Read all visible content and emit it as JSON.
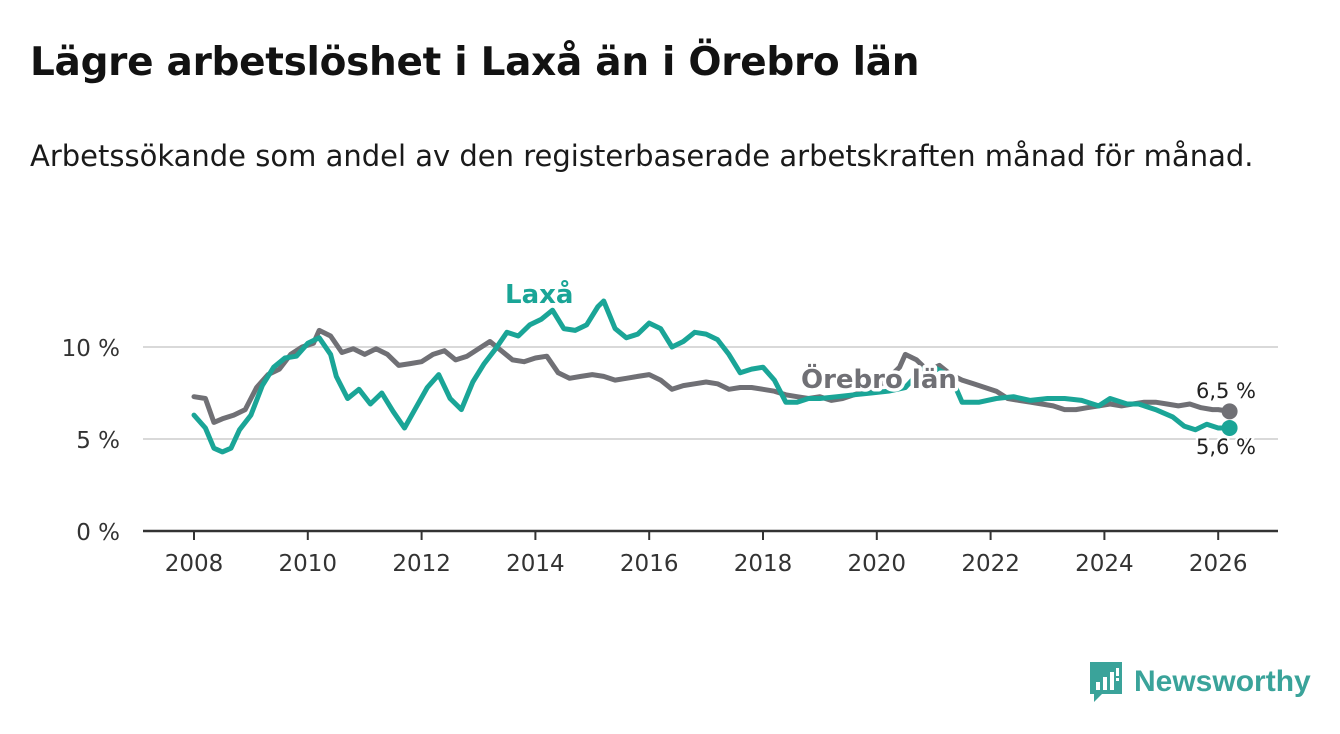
{
  "title": "Lägre arbetslöshet i Laxå än i Örebro län",
  "subtitle": "Arbetssökande som andel av den registerbaserade arbetskraften månad för månad.",
  "brand": "Newsworthy",
  "chart_data": {
    "type": "line",
    "title": "Lägre arbetslöshet i Laxå än i Örebro län",
    "xlabel": "",
    "ylabel": "",
    "xlim": [
      2007.9,
      2027.1
    ],
    "ylim": [
      0,
      10
    ],
    "x_ticks": [
      2008,
      2010,
      2012,
      2014,
      2016,
      2018,
      2020,
      2022,
      2024,
      2026
    ],
    "x_tick_labels": [
      "2008",
      "2010",
      "2012",
      "2014",
      "2016",
      "2018",
      "2020",
      "2022",
      "2024",
      "2026"
    ],
    "y_ticks": [
      0,
      5,
      10
    ],
    "y_tick_labels": [
      "0 %",
      "5 %",
      "10 %"
    ],
    "grid": true,
    "colors": {
      "laxa": "#1aa597",
      "orebro": "#707075",
      "axis": "#333333",
      "grid": "#d9d9d9"
    },
    "series": [
      {
        "name": "Laxå",
        "label": "Laxå",
        "end_label": "5,6 %",
        "points": [
          [
            2008.0,
            6.3
          ],
          [
            2008.2,
            5.6
          ],
          [
            2008.35,
            4.5
          ],
          [
            2008.5,
            4.3
          ],
          [
            2008.65,
            4.5
          ],
          [
            2008.8,
            5.5
          ],
          [
            2009.0,
            6.3
          ],
          [
            2009.2,
            7.9
          ],
          [
            2009.4,
            8.9
          ],
          [
            2009.6,
            9.4
          ],
          [
            2009.8,
            9.5
          ],
          [
            2010.0,
            10.2
          ],
          [
            2010.2,
            10.5
          ],
          [
            2010.4,
            9.6
          ],
          [
            2010.5,
            8.4
          ],
          [
            2010.7,
            7.2
          ],
          [
            2010.9,
            7.7
          ],
          [
            2011.1,
            6.9
          ],
          [
            2011.3,
            7.5
          ],
          [
            2011.5,
            6.5
          ],
          [
            2011.7,
            5.6
          ],
          [
            2011.9,
            6.7
          ],
          [
            2012.1,
            7.8
          ],
          [
            2012.3,
            8.5
          ],
          [
            2012.5,
            7.2
          ],
          [
            2012.7,
            6.6
          ],
          [
            2012.9,
            8.1
          ],
          [
            2013.1,
            9.1
          ],
          [
            2013.3,
            9.9
          ],
          [
            2013.5,
            10.8
          ],
          [
            2013.7,
            10.6
          ],
          [
            2013.9,
            11.2
          ],
          [
            2014.1,
            11.5
          ],
          [
            2014.3,
            12.0
          ],
          [
            2014.5,
            11.0
          ],
          [
            2014.7,
            10.9
          ],
          [
            2014.9,
            11.2
          ],
          [
            2015.1,
            12.2
          ],
          [
            2015.2,
            12.5
          ],
          [
            2015.4,
            11.0
          ],
          [
            2015.6,
            10.5
          ],
          [
            2015.8,
            10.7
          ],
          [
            2016.0,
            11.3
          ],
          [
            2016.2,
            11.0
          ],
          [
            2016.4,
            10.0
          ],
          [
            2016.6,
            10.3
          ],
          [
            2016.8,
            10.8
          ],
          [
            2017.0,
            10.7
          ],
          [
            2017.2,
            10.4
          ],
          [
            2017.4,
            9.6
          ],
          [
            2017.6,
            8.6
          ],
          [
            2017.8,
            8.8
          ],
          [
            2018.0,
            8.9
          ],
          [
            2018.2,
            8.2
          ],
          [
            2018.4,
            7.0
          ],
          [
            2018.6,
            7.0
          ],
          [
            2018.8,
            7.2
          ],
          [
            2019.0,
            7.2
          ],
          [
            2019.3,
            7.3
          ],
          [
            2019.6,
            7.4
          ],
          [
            2019.9,
            7.5
          ],
          [
            2020.2,
            7.6
          ],
          [
            2020.5,
            7.8
          ],
          [
            2020.8,
            8.8
          ],
          [
            2021.0,
            8.9
          ],
          [
            2021.3,
            8.4
          ],
          [
            2021.5,
            7.0
          ],
          [
            2021.8,
            7.0
          ],
          [
            2022.1,
            7.2
          ],
          [
            2022.4,
            7.3
          ],
          [
            2022.7,
            7.1
          ],
          [
            2023.0,
            7.2
          ],
          [
            2023.3,
            7.2
          ],
          [
            2023.6,
            7.1
          ],
          [
            2023.9,
            6.8
          ],
          [
            2024.1,
            7.2
          ],
          [
            2024.4,
            6.9
          ],
          [
            2024.6,
            6.9
          ],
          [
            2024.9,
            6.6
          ],
          [
            2025.2,
            6.2
          ],
          [
            2025.4,
            5.7
          ],
          [
            2025.6,
            5.5
          ],
          [
            2025.8,
            5.8
          ],
          [
            2026.0,
            5.6
          ],
          [
            2026.2,
            5.6
          ]
        ]
      },
      {
        "name": "Örebro län",
        "label": "Örebro län",
        "end_label": "6,5 %",
        "points": [
          [
            2008.0,
            7.3
          ],
          [
            2008.2,
            7.2
          ],
          [
            2008.35,
            5.9
          ],
          [
            2008.5,
            6.1
          ],
          [
            2008.7,
            6.3
          ],
          [
            2008.9,
            6.6
          ],
          [
            2009.1,
            7.8
          ],
          [
            2009.3,
            8.5
          ],
          [
            2009.5,
            8.8
          ],
          [
            2009.7,
            9.6
          ],
          [
            2009.9,
            10.0
          ],
          [
            2010.1,
            10.2
          ],
          [
            2010.2,
            10.9
          ],
          [
            2010.4,
            10.6
          ],
          [
            2010.6,
            9.7
          ],
          [
            2010.8,
            9.9
          ],
          [
            2011.0,
            9.6
          ],
          [
            2011.2,
            9.9
          ],
          [
            2011.4,
            9.6
          ],
          [
            2011.6,
            9.0
          ],
          [
            2011.8,
            9.1
          ],
          [
            2012.0,
            9.2
          ],
          [
            2012.2,
            9.6
          ],
          [
            2012.4,
            9.8
          ],
          [
            2012.6,
            9.3
          ],
          [
            2012.8,
            9.5
          ],
          [
            2013.0,
            9.9
          ],
          [
            2013.2,
            10.3
          ],
          [
            2013.4,
            9.8
          ],
          [
            2013.6,
            9.3
          ],
          [
            2013.8,
            9.2
          ],
          [
            2014.0,
            9.4
          ],
          [
            2014.2,
            9.5
          ],
          [
            2014.4,
            8.6
          ],
          [
            2014.6,
            8.3
          ],
          [
            2014.8,
            8.4
          ],
          [
            2015.0,
            8.5
          ],
          [
            2015.2,
            8.4
          ],
          [
            2015.4,
            8.2
          ],
          [
            2015.6,
            8.3
          ],
          [
            2015.8,
            8.4
          ],
          [
            2016.0,
            8.5
          ],
          [
            2016.2,
            8.2
          ],
          [
            2016.4,
            7.7
          ],
          [
            2016.6,
            7.9
          ],
          [
            2016.8,
            8.0
          ],
          [
            2017.0,
            8.1
          ],
          [
            2017.2,
            8.0
          ],
          [
            2017.4,
            7.7
          ],
          [
            2017.6,
            7.8
          ],
          [
            2017.8,
            7.8
          ],
          [
            2018.0,
            7.7
          ],
          [
            2018.2,
            7.6
          ],
          [
            2018.4,
            7.4
          ],
          [
            2018.6,
            7.3
          ],
          [
            2018.8,
            7.2
          ],
          [
            2019.0,
            7.3
          ],
          [
            2019.2,
            7.1
          ],
          [
            2019.4,
            7.2
          ],
          [
            2019.6,
            7.4
          ],
          [
            2019.8,
            7.6
          ],
          [
            2020.0,
            7.8
          ],
          [
            2020.2,
            8.3
          ],
          [
            2020.4,
            8.9
          ],
          [
            2020.5,
            9.6
          ],
          [
            2020.7,
            9.3
          ],
          [
            2020.9,
            8.7
          ],
          [
            2021.1,
            9.0
          ],
          [
            2021.3,
            8.5
          ],
          [
            2021.5,
            8.2
          ],
          [
            2021.7,
            8.0
          ],
          [
            2021.9,
            7.8
          ],
          [
            2022.1,
            7.6
          ],
          [
            2022.3,
            7.2
          ],
          [
            2022.5,
            7.1
          ],
          [
            2022.7,
            7.0
          ],
          [
            2022.9,
            6.9
          ],
          [
            2023.1,
            6.8
          ],
          [
            2023.3,
            6.6
          ],
          [
            2023.5,
            6.6
          ],
          [
            2023.7,
            6.7
          ],
          [
            2023.9,
            6.8
          ],
          [
            2024.1,
            6.9
          ],
          [
            2024.3,
            6.8
          ],
          [
            2024.5,
            6.9
          ],
          [
            2024.7,
            7.0
          ],
          [
            2024.9,
            7.0
          ],
          [
            2025.1,
            6.9
          ],
          [
            2025.3,
            6.8
          ],
          [
            2025.5,
            6.9
          ],
          [
            2025.7,
            6.7
          ],
          [
            2025.9,
            6.6
          ],
          [
            2026.0,
            6.6
          ],
          [
            2026.2,
            6.5
          ]
        ]
      }
    ]
  }
}
